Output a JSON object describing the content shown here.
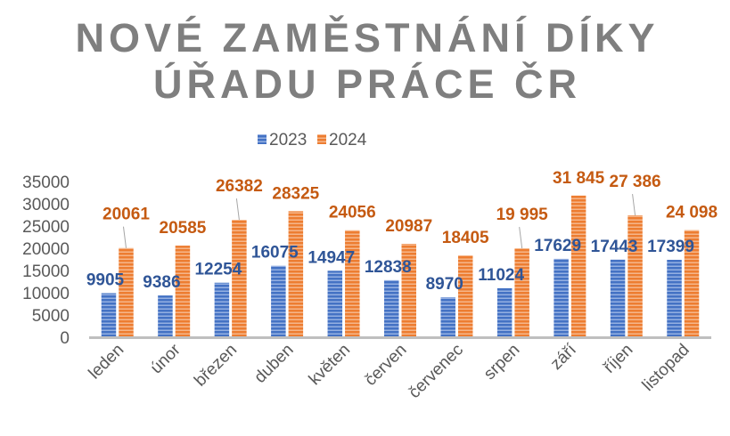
{
  "chart_data": {
    "type": "bar",
    "title_lines": [
      "NOVÉ ZAMĚSTNÁNÍ DÍKY",
      "ÚŘADU PRÁCE ČR"
    ],
    "categories": [
      "leden",
      "únor",
      "březen",
      "duben",
      "květen",
      "červen",
      "červenec",
      "srpen",
      "září",
      "říjen",
      "listopad"
    ],
    "series": [
      {
        "name": "2023",
        "color": "#4472c4",
        "label_color": "#2f5597",
        "values": [
          9905,
          9386,
          12254,
          16075,
          14947,
          12838,
          8970,
          11024,
          17629,
          17443,
          17399
        ],
        "labels": [
          "9905",
          "9386",
          "12254",
          "16075",
          "14947",
          "12838",
          "8970",
          "11024",
          "17629",
          "17443",
          "17399"
        ]
      },
      {
        "name": "2024",
        "color": "#ed7d31",
        "label_color": "#c55a11",
        "values": [
          20061,
          20585,
          26382,
          28325,
          24056,
          20987,
          18405,
          19995,
          31845,
          27386,
          24098
        ],
        "labels": [
          "20061",
          "20585",
          "26382",
          "28325",
          "24056",
          "20987",
          "18405",
          "19 995",
          "31 845",
          "27 386",
          "24 098"
        ]
      }
    ],
    "yticks": [
      "0",
      "5000",
      "10000",
      "15000",
      "20000",
      "25000",
      "30000",
      "35000"
    ],
    "ylim": [
      0,
      35000
    ],
    "xlabel": "",
    "ylabel": "",
    "grid": false,
    "legend_position": "top-center"
  }
}
